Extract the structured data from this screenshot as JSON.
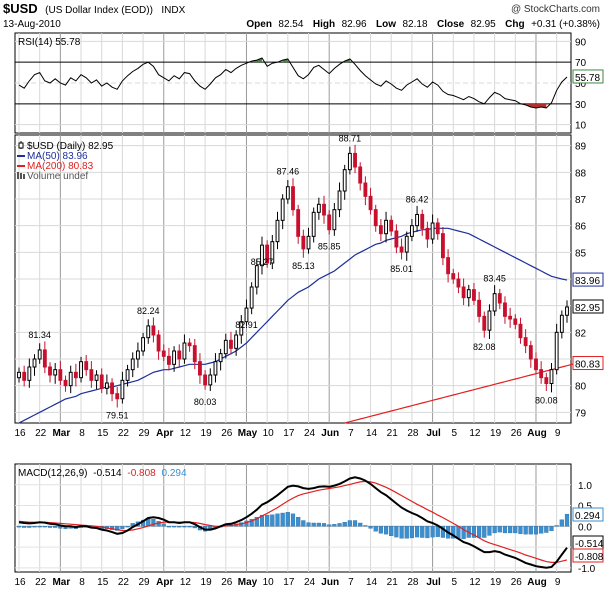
{
  "header": {
    "symbol": "$USD",
    "name": "(US Dollar Index (EOD))",
    "exchange": "INDX",
    "date": "13-Aug-2010",
    "watermark": "@ StockCharts.com",
    "open_label": "Open",
    "open": "82.54",
    "high_label": "High",
    "high": "82.96",
    "low_label": "Low",
    "low": "82.18",
    "close_label": "Close",
    "close": "82.95",
    "chg_label": "Chg",
    "chg": "+0.31 (+0.38%)"
  },
  "rsi_panel": {
    "label": "RSI(14) 55.78",
    "current_badge": "55.78",
    "ticks": [
      "90",
      "70",
      "50",
      "30",
      "10"
    ]
  },
  "price_panel": {
    "legend": [
      {
        "text": "$USD (Daily) 82.95",
        "color": "#000000",
        "icon": "candle-icon"
      },
      {
        "text": "MA(50) 83.96",
        "color": "#1c2f9a",
        "icon": "line-icon"
      },
      {
        "text": "MA(200) 80.83",
        "color": "#e02020",
        "icon": "line-icon"
      },
      {
        "text": "Volume undef",
        "color": "#555555",
        "icon": "volume-bars-icon"
      }
    ],
    "badges": {
      "ma50": "83.96",
      "close": "82.95",
      "ma200": "80.83"
    },
    "ticks": [
      "89",
      "88",
      "87",
      "86",
      "85",
      "84",
      "83",
      "82",
      "81",
      "80",
      "79"
    ],
    "annotations": [
      "81.34",
      "79.51",
      "82.24",
      "80.03",
      "85.27",
      "82.91",
      "87.46",
      "85.13",
      "85.85",
      "88.71",
      "85.01",
      "86.42",
      "83.45",
      "82.08",
      "80.08"
    ]
  },
  "macd_panel": {
    "label_prefix": "MACD(12,26,9)",
    "macd_value": "-0.514",
    "signal_value": "-0.808",
    "hist_value": "0.294",
    "colors": {
      "macd": "#000000",
      "signal": "#e02020",
      "hist": "#3a8fd0"
    },
    "ticks": [
      "1.0",
      "0.5",
      "0.0",
      "-0.5",
      "-1.0"
    ],
    "badges": {
      "hist": "0.294",
      "macd": "-0.514",
      "signal": "-0.808"
    }
  },
  "x_axis": {
    "labels": [
      "16",
      "22",
      "Mar",
      "8",
      "15",
      "22",
      "29",
      "Apr",
      "12",
      "19",
      "26",
      "May",
      "10",
      "17",
      "24",
      "Jun",
      "7",
      "14",
      "21",
      "28",
      "Jul",
      "5",
      "12",
      "19",
      "26",
      "Aug",
      "9"
    ]
  },
  "chart_data": {
    "type": "candlestick",
    "title": "$USD (US Dollar Index (EOD)) INDX",
    "date": "13-Aug-2010",
    "x_range": [
      "2010-02-16",
      "2010-08-13"
    ],
    "ylim": [
      78.6,
      89.4
    ],
    "grid": true,
    "legend_position": "top-left",
    "indicators": [
      "RSI(14)",
      "MA(50)",
      "MA(200)",
      "MACD(12,26,9)"
    ],
    "last_bar": {
      "open": 82.54,
      "high": 82.96,
      "low": 82.18,
      "close": 82.95,
      "change": 0.31,
      "change_pct": 0.38
    },
    "price_closes": [
      80.5,
      80.2,
      80.7,
      81.0,
      81.34,
      80.7,
      80.4,
      80.6,
      80.2,
      80.0,
      80.5,
      80.3,
      80.9,
      80.6,
      80.2,
      80.4,
      79.9,
      80.1,
      79.7,
      79.51,
      80.2,
      80.6,
      81.0,
      81.3,
      81.8,
      82.24,
      81.9,
      81.3,
      81.1,
      80.8,
      81.3,
      81.0,
      81.6,
      81.5,
      80.9,
      80.4,
      80.03,
      80.4,
      80.9,
      81.2,
      81.7,
      81.4,
      81.9,
      82.4,
      82.91,
      83.7,
      84.5,
      85.27,
      84.6,
      85.4,
      86.2,
      87.0,
      87.46,
      86.6,
      85.6,
      85.13,
      85.6,
      86.5,
      86.8,
      86.4,
      85.85,
      86.6,
      87.3,
      88.1,
      88.71,
      88.2,
      87.6,
      87.1,
      86.6,
      86.0,
      85.7,
      86.2,
      85.8,
      85.2,
      85.01,
      85.6,
      86.0,
      86.42,
      85.9,
      85.5,
      86.1,
      85.7,
      84.8,
      84.2,
      84.0,
      83.7,
      83.3,
      83.6,
      83.2,
      82.6,
      82.08,
      82.8,
      83.45,
      83.1,
      82.6,
      82.5,
      82.3,
      81.8,
      81.5,
      81.0,
      80.6,
      80.3,
      80.08,
      80.6,
      82.0,
      82.64,
      82.95
    ],
    "rsi_range": [
      10,
      90
    ],
    "rsi_values": [
      48,
      45,
      52,
      58,
      60,
      52,
      50,
      54,
      50,
      48,
      55,
      52,
      58,
      55,
      50,
      53,
      47,
      50,
      46,
      44,
      52,
      57,
      61,
      64,
      68,
      70,
      66,
      58,
      55,
      52,
      57,
      54,
      60,
      59,
      52,
      47,
      44,
      49,
      55,
      58,
      63,
      60,
      64,
      67,
      69,
      71,
      72,
      74,
      66,
      69,
      70,
      72,
      73,
      65,
      57,
      54,
      58,
      65,
      67,
      63,
      59,
      64,
      68,
      71,
      73,
      68,
      62,
      57,
      53,
      49,
      47,
      52,
      49,
      45,
      43,
      48,
      51,
      54,
      49,
      46,
      51,
      48,
      42,
      39,
      38,
      36,
      34,
      37,
      35,
      32,
      30,
      36,
      41,
      39,
      35,
      34,
      33,
      30,
      29,
      27,
      26,
      27,
      26,
      31,
      43,
      51,
      55.78
    ],
    "ma50_values": [
      78.6,
      78.7,
      78.8,
      78.9,
      79.0,
      79.1,
      79.2,
      79.3,
      79.4,
      79.5,
      79.55,
      79.6,
      79.7,
      79.75,
      79.8,
      79.85,
      79.9,
      79.95,
      79.95,
      80.0,
      80.05,
      80.1,
      80.15,
      80.2,
      80.3,
      80.4,
      80.5,
      80.55,
      80.6,
      80.6,
      80.65,
      80.7,
      80.75,
      80.8,
      80.8,
      80.8,
      80.8,
      80.85,
      80.9,
      81.0,
      81.1,
      81.2,
      81.3,
      81.45,
      81.6,
      81.8,
      82.0,
      82.2,
      82.4,
      82.6,
      82.8,
      83.0,
      83.2,
      83.35,
      83.5,
      83.6,
      83.7,
      83.85,
      84.0,
      84.1,
      84.2,
      84.3,
      84.45,
      84.6,
      84.75,
      84.9,
      85.0,
      85.1,
      85.2,
      85.3,
      85.35,
      85.45,
      85.5,
      85.55,
      85.6,
      85.7,
      85.75,
      85.8,
      85.85,
      85.85,
      85.9,
      85.9,
      85.9,
      85.9,
      85.85,
      85.8,
      85.75,
      85.7,
      85.6,
      85.5,
      85.4,
      85.3,
      85.2,
      85.1,
      85.0,
      84.9,
      84.8,
      84.7,
      84.6,
      84.5,
      84.4,
      84.3,
      84.2,
      84.1,
      84.05,
      84.0,
      83.96
    ],
    "ma200_values": [
      null,
      null,
      null,
      null,
      null,
      null,
      null,
      null,
      null,
      null,
      null,
      null,
      null,
      null,
      null,
      null,
      null,
      null,
      null,
      null,
      null,
      null,
      null,
      null,
      null,
      null,
      null,
      null,
      null,
      null,
      null,
      null,
      null,
      null,
      null,
      null,
      null,
      null,
      null,
      null,
      null,
      null,
      null,
      null,
      null,
      null,
      null,
      null,
      null,
      null,
      null,
      null,
      null,
      null,
      null,
      null,
      null,
      null,
      null,
      null,
      null,
      null,
      null,
      78.6,
      78.65,
      78.7,
      78.75,
      78.8,
      78.85,
      78.9,
      78.95,
      79.0,
      79.05,
      79.1,
      79.15,
      79.2,
      79.25,
      79.3,
      79.35,
      79.4,
      79.45,
      79.5,
      79.55,
      79.6,
      79.65,
      79.7,
      79.75,
      79.8,
      79.85,
      79.9,
      79.95,
      80.0,
      80.05,
      80.1,
      80.15,
      80.2,
      80.25,
      80.3,
      80.35,
      80.4,
      80.45,
      80.5,
      80.55,
      80.6,
      80.65,
      80.7,
      80.75,
      80.8,
      80.83
    ],
    "macd_range": [
      -1.1,
      1.5
    ],
    "macd_values": [
      0.1,
      0.08,
      0.07,
      0.08,
      0.1,
      0.09,
      0.06,
      0.05,
      0.02,
      0.0,
      0.0,
      -0.02,
      0.0,
      0.0,
      -0.03,
      -0.04,
      -0.08,
      -0.1,
      -0.14,
      -0.18,
      -0.16,
      -0.1,
      -0.02,
      0.05,
      0.12,
      0.2,
      0.22,
      0.2,
      0.16,
      0.1,
      0.1,
      0.08,
      0.1,
      0.1,
      0.05,
      -0.02,
      -0.08,
      -0.08,
      -0.05,
      0.0,
      0.05,
      0.06,
      0.1,
      0.15,
      0.22,
      0.3,
      0.4,
      0.52,
      0.58,
      0.66,
      0.75,
      0.85,
      0.95,
      0.98,
      0.96,
      0.92,
      0.9,
      0.92,
      0.95,
      0.96,
      0.95,
      0.98,
      1.02,
      1.08,
      1.15,
      1.18,
      1.15,
      1.1,
      1.02,
      0.92,
      0.82,
      0.75,
      0.65,
      0.55,
      0.45,
      0.38,
      0.32,
      0.27,
      0.2,
      0.12,
      0.08,
      0.02,
      -0.06,
      -0.15,
      -0.22,
      -0.3,
      -0.38,
      -0.42,
      -0.48,
      -0.55,
      -0.62,
      -0.62,
      -0.6,
      -0.62,
      -0.68,
      -0.72,
      -0.76,
      -0.82,
      -0.88,
      -0.92,
      -0.96,
      -0.98,
      -1.0,
      -0.98,
      -0.85,
      -0.68,
      -0.514
    ],
    "signal_values": [
      0.12,
      0.11,
      0.1,
      0.1,
      0.1,
      0.1,
      0.09,
      0.08,
      0.07,
      0.06,
      0.05,
      0.04,
      0.03,
      0.02,
      0.01,
      0.0,
      -0.02,
      -0.04,
      -0.06,
      -0.08,
      -0.1,
      -0.1,
      -0.09,
      -0.06,
      -0.03,
      0.01,
      0.05,
      0.08,
      0.1,
      0.1,
      0.1,
      0.1,
      0.1,
      0.1,
      0.09,
      0.07,
      0.04,
      0.02,
      0.0,
      0.0,
      0.01,
      0.02,
      0.04,
      0.06,
      0.09,
      0.13,
      0.18,
      0.25,
      0.31,
      0.38,
      0.45,
      0.53,
      0.61,
      0.68,
      0.74,
      0.78,
      0.81,
      0.84,
      0.87,
      0.89,
      0.91,
      0.93,
      0.95,
      0.98,
      1.01,
      1.04,
      1.07,
      1.08,
      1.07,
      1.04,
      0.99,
      0.94,
      0.88,
      0.81,
      0.74,
      0.67,
      0.6,
      0.53,
      0.47,
      0.4,
      0.34,
      0.27,
      0.21,
      0.14,
      0.07,
      0.0,
      -0.08,
      -0.15,
      -0.21,
      -0.28,
      -0.35,
      -0.4,
      -0.44,
      -0.48,
      -0.52,
      -0.56,
      -0.6,
      -0.64,
      -0.69,
      -0.73,
      -0.77,
      -0.81,
      -0.85,
      -0.87,
      -0.87,
      -0.84,
      -0.808
    ]
  }
}
